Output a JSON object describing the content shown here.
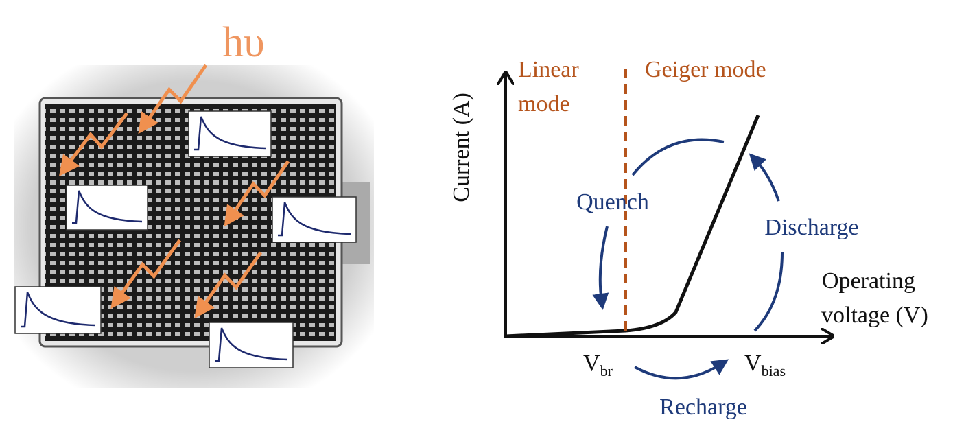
{
  "photon_label": "hυ",
  "plot": {
    "y_axis_label": "Current (A)",
    "x_axis_label": [
      "Operating",
      "voltage (V)"
    ],
    "linear_region": [
      "Linear",
      "mode"
    ],
    "geiger_region": "Geiger mode",
    "quench": "Quench",
    "discharge": "Discharge",
    "recharge": "Recharge",
    "v_br": {
      "main": "V",
      "sub": "br"
    },
    "v_bias": {
      "main": "V",
      "sub": "bias"
    }
  }
}
